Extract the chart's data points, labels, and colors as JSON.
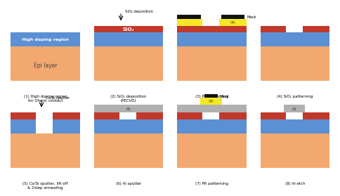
{
  "colors": {
    "epi": "#F2A86E",
    "high_doping": "#5B90D4",
    "sio2": "#C0392B",
    "mask": "#111111",
    "pr": "#F5E825",
    "al": "#B0B0B0",
    "white": "#FFFFFF",
    "bg": "#FFFFFF"
  },
  "captions": [
    "(1) High doping region\nfor Ohmic contact",
    "(2) SiO₂ deposition\n(PECVD)",
    "(3) PR patterning",
    "(4) SiO₂ patterning",
    "(5) Co/Si sputter, lift off\n& 2step annealing",
    "(6) Al sputter",
    "(7) PR patterning",
    "(8) Al etch"
  ],
  "label_high_doping": "High doping region",
  "label_epi": "Epi layer",
  "label_sio2": "SiO₂",
  "label_pr": "PR",
  "label_al": "Al",
  "label_mask": "Mask",
  "arrow_sio2": "SiO₂ deposition",
  "arrow_co": "Co/Si sputter"
}
